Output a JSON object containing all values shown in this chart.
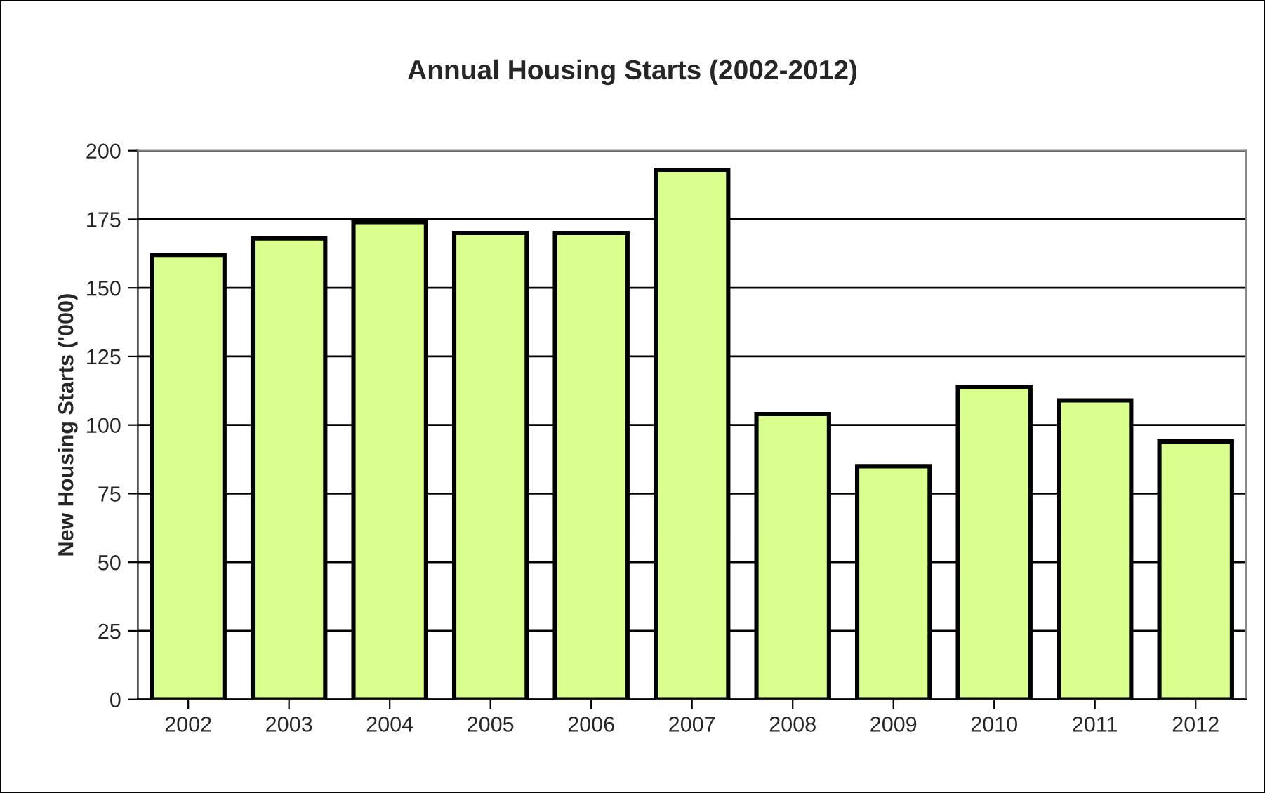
{
  "chart_data": {
    "type": "bar",
    "title": "Annual Housing Starts (2002-2012)",
    "ylabel": "New Housing Starts ('000)",
    "categories": [
      "2002",
      "2003",
      "2004",
      "2005",
      "2006",
      "2007",
      "2008",
      "2009",
      "2010",
      "2011",
      "2012"
    ],
    "values": [
      162,
      168,
      174,
      170,
      170,
      193,
      104,
      85,
      114,
      109,
      94
    ],
    "color": "#d9ff8c",
    "ylim": [
      0,
      200
    ],
    "yticks": [
      0,
      25,
      50,
      75,
      100,
      125,
      150,
      175,
      200
    ],
    "grid": "y"
  }
}
